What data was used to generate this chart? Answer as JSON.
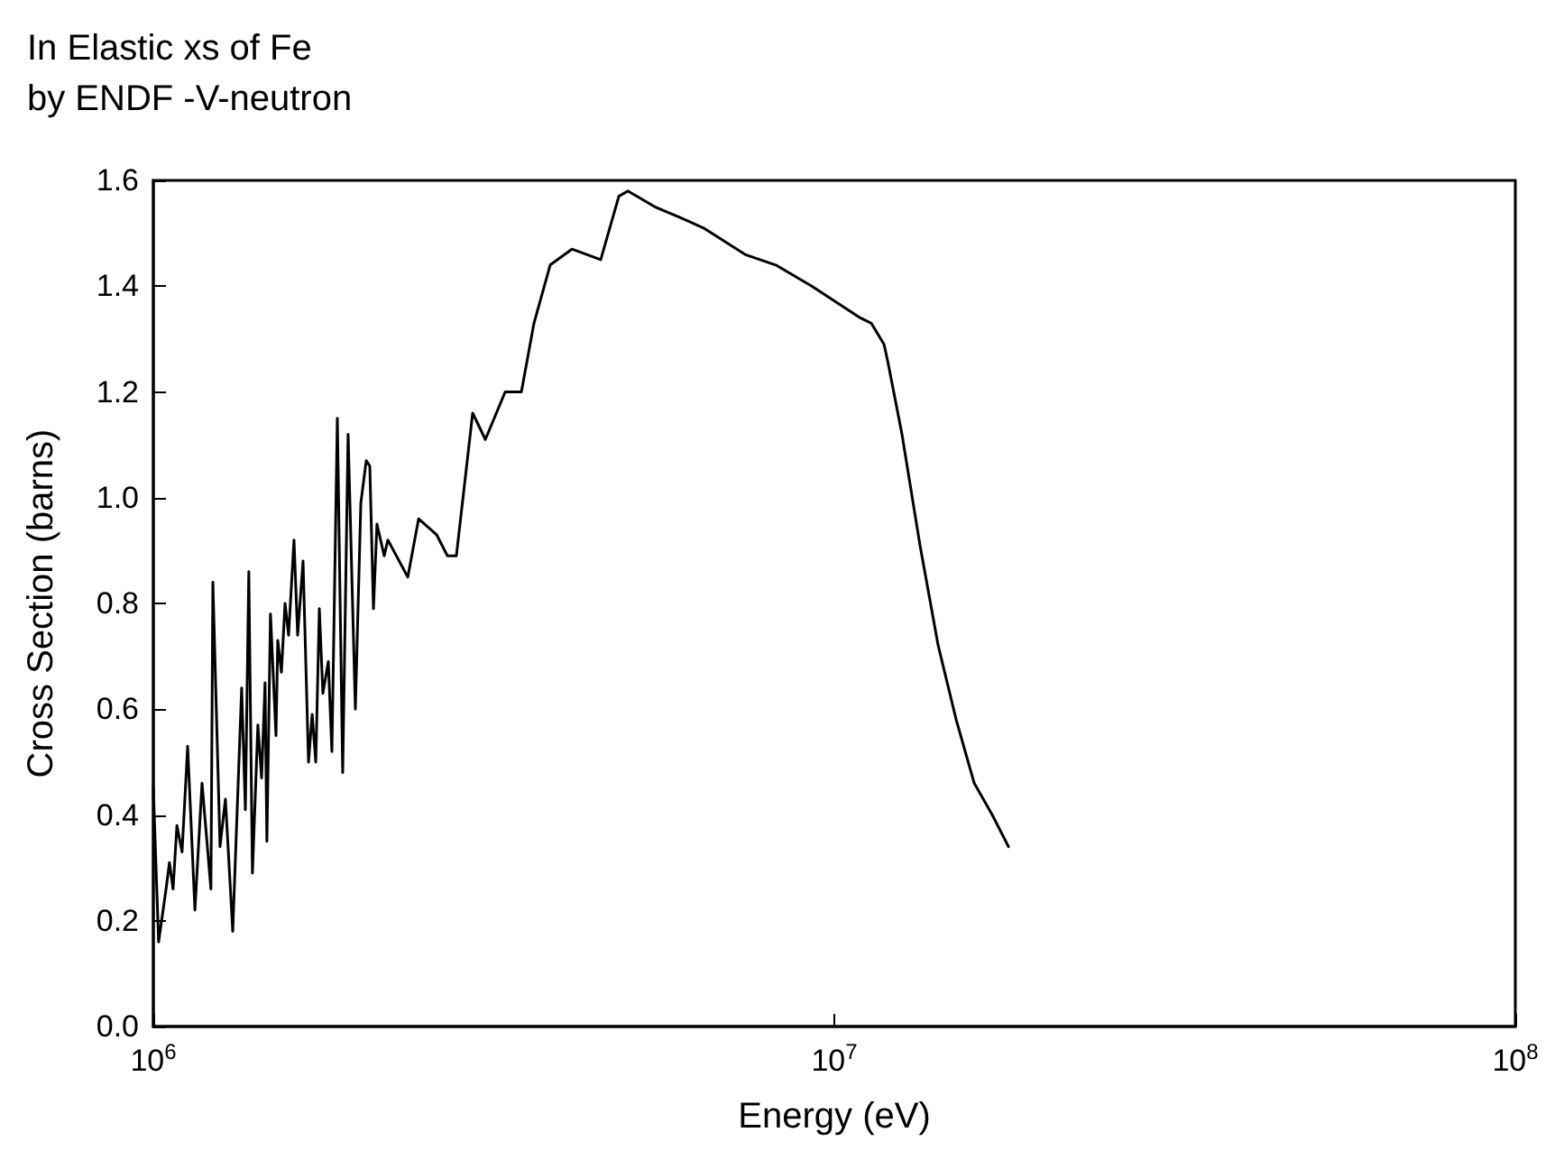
{
  "chart_data": {
    "type": "line",
    "title": "In Elastic xs of Fe\nby ENDF -V-neutron",
    "xlabel": "Energy (eV)",
    "ylabel": "Cross Section (barns)",
    "log": "x",
    "grid": false,
    "marker": "none",
    "line_style": "solid",
    "xlim": [
      1000000,
      100000000
    ],
    "xticks": [
      {
        "value": 1000000,
        "label": "10$^{6}$"
      },
      {
        "value": 10000000,
        "label": "10$^{7}$"
      },
      {
        "value": 100000000,
        "label": "10$^{8}$"
      }
    ],
    "ylim": [
      0,
      1.6
    ],
    "yticks": [
      {
        "value": 0,
        "label": "0.0"
      },
      {
        "value": 0.2,
        "label": "0.2"
      },
      {
        "value": 0.4,
        "label": "0.4"
      },
      {
        "value": 0.6,
        "label": "0.6"
      },
      {
        "value": 0.8,
        "label": "0.8"
      },
      {
        "value": 1.0,
        "label": "1.0"
      },
      {
        "value": 1.2,
        "label": "1.2"
      },
      {
        "value": 1.4,
        "label": "1.4"
      },
      {
        "value": 1.6,
        "label": "1.6"
      }
    ],
    "series": [
      {
        "color": "#000000",
        "x": [
          1000000,
          1018000,
          1044000,
          1056000,
          1069000,
          1083000,
          1102000,
          1123000,
          1151000,
          1179000,
          1215000,
          1223000,
          1253000,
          1276000,
          1308000,
          1348000,
          1365000,
          1381000,
          1398000,
          1424000,
          1442000,
          1459000,
          1468000,
          1486000,
          1514000,
          1523000,
          1542000,
          1561000,
          1580000,
          1609000,
          1629000,
          1659000,
          1690000,
          1711000,
          1732000,
          1753000,
          1774000,
          1807000,
          1829000,
          1863000,
          1897000,
          1932000,
          1980000,
          2017000,
          2054000,
          2079000,
          2105000,
          2130000,
          2183000,
          2210000,
          2364000,
          2452000,
          2606000,
          2703000,
          2786000,
          2944000,
          3073000,
          3286000,
          3471000,
          3622000,
          3826000,
          4118000,
          4539000,
          4826000,
          4975000,
          5451000,
          5936000,
          6427000,
          7393000,
          8203000,
          9267000,
          10920000,
          11330000,
          11830000,
          11970000,
          12570000,
          13360000,
          14210000,
          15100000,
          16050000,
          17060000,
          18020000
        ],
        "values": [
          0.45,
          0.16,
          0.26,
          0.31,
          0.26,
          0.38,
          0.33,
          0.53,
          0.22,
          0.46,
          0.26,
          0.84,
          0.34,
          0.43,
          0.18,
          0.64,
          0.41,
          0.86,
          0.29,
          0.57,
          0.47,
          0.65,
          0.35,
          0.78,
          0.55,
          0.73,
          0.67,
          0.8,
          0.74,
          0.92,
          0.74,
          0.88,
          0.5,
          0.59,
          0.5,
          0.79,
          0.63,
          0.69,
          0.52,
          1.15,
          0.48,
          1.12,
          0.6,
          0.99,
          1.07,
          1.06,
          0.79,
          0.95,
          0.89,
          0.92,
          0.85,
          0.96,
          0.93,
          0.89,
          0.89,
          1.16,
          1.11,
          1.2,
          1.2,
          1.33,
          1.44,
          1.47,
          1.45,
          1.57,
          1.58,
          1.55,
          1.53,
          1.51,
          1.46,
          1.44,
          1.4,
          1.34,
          1.33,
          1.29,
          1.26,
          1.12,
          0.91,
          0.72,
          0.58,
          0.46,
          0.4,
          0.34
        ]
      }
    ]
  }
}
